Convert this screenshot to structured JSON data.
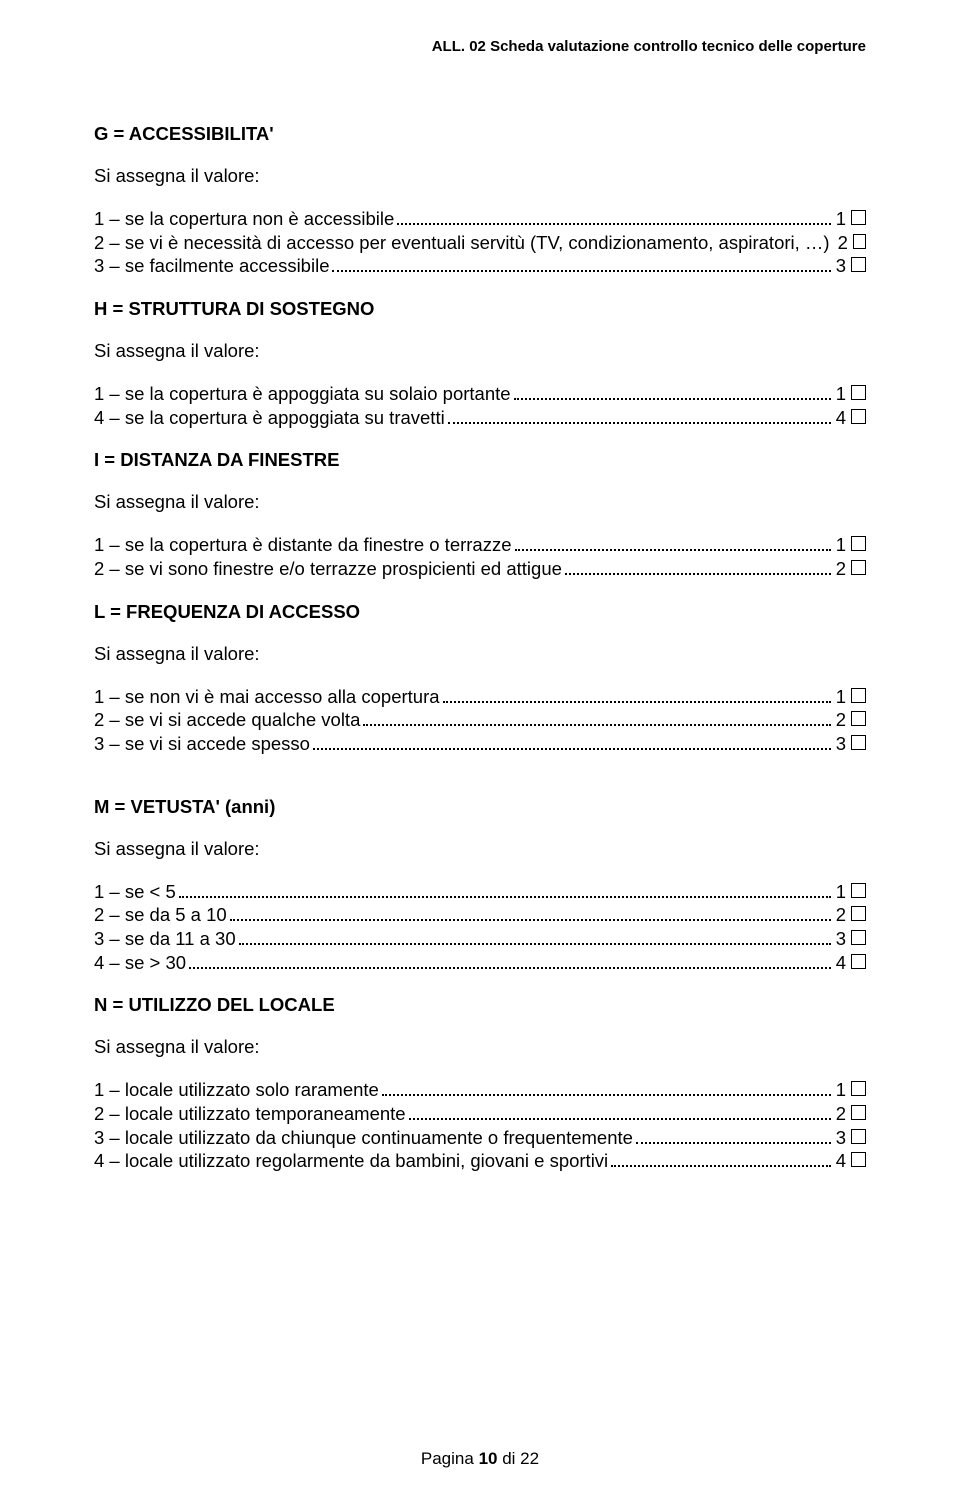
{
  "header": "ALL. 02     Scheda valutazione controllo tecnico delle coperture",
  "sections": [
    {
      "title": "G = ACCESSIBILITA'",
      "extraTop": false,
      "assign": "Si assegna il valore:",
      "items": [
        {
          "text": "1 – se la copertura non è accessibile",
          "value": "1"
        },
        {
          "text": "2 – se vi è necessità di accesso per eventuali servitù (TV, condizionamento, aspiratori, …)",
          "value": "2"
        },
        {
          "text": "3 – se facilmente accessibile",
          "value": "3"
        }
      ]
    },
    {
      "title": "H = STRUTTURA DI SOSTEGNO",
      "extraTop": false,
      "assign": "Si assegna il valore:",
      "items": [
        {
          "text": "1 – se la copertura è appoggiata su solaio portante",
          "value": "1"
        },
        {
          "text": "4 – se la copertura è appoggiata su travetti",
          "value": "4"
        }
      ]
    },
    {
      "title": "I = DISTANZA DA FINESTRE",
      "extraTop": false,
      "assign": "Si assegna il valore:",
      "items": [
        {
          "text": "1 – se la copertura è distante da finestre o terrazze",
          "value": "1"
        },
        {
          "text": "2 – se vi sono finestre e/o terrazze prospicienti ed attigue",
          "value": "2"
        }
      ]
    },
    {
      "title": "L = FREQUENZA DI ACCESSO",
      "extraTop": false,
      "assign": "Si assegna il valore:",
      "items": [
        {
          "text": "1 – se non vi è mai accesso alla copertura",
          "value": "1"
        },
        {
          "text": "2 – se vi si accede qualche volta",
          "value": "2"
        },
        {
          "text": "3 – se vi si accede spesso",
          "value": "3"
        }
      ]
    },
    {
      "title": "M = VETUSTA' (anni)",
      "extraTop": true,
      "assign": "Si assegna il valore:",
      "items": [
        {
          "text": "1 – se < 5",
          "value": "1"
        },
        {
          "text": "2 – se da 5 a 10",
          "value": "2"
        },
        {
          "text": "3 – se da 11 a 30",
          "value": "3"
        },
        {
          "text": "4 – se > 30",
          "value": "4"
        }
      ]
    },
    {
      "title": "N = UTILIZZO DEL LOCALE",
      "extraTop": false,
      "assign": "Si assegna il valore:",
      "items": [
        {
          "text": "1 – locale utilizzato solo raramente",
          "value": "1"
        },
        {
          "text": "2 – locale utilizzato temporaneamente",
          "value": "2"
        },
        {
          "text": "3 – locale utilizzato da chiunque continuamente o frequentemente",
          "value": "3"
        },
        {
          "text": "4 – locale utilizzato regolarmente da bambini, giovani e sportivi",
          "value": "4"
        }
      ]
    }
  ],
  "footer": {
    "prefix": "Pagina ",
    "num": "10",
    "mid": " di ",
    "total": "22"
  }
}
